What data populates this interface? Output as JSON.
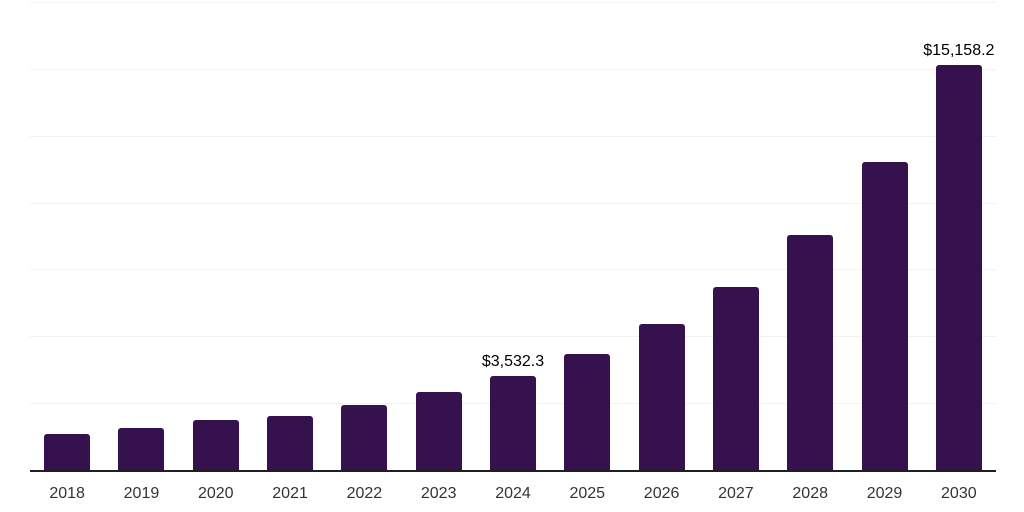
{
  "chart_data": {
    "type": "bar",
    "title": "",
    "categories": [
      "2018",
      "2019",
      "2020",
      "2021",
      "2022",
      "2023",
      "2024",
      "2025",
      "2026",
      "2027",
      "2028",
      "2029",
      "2030"
    ],
    "values": [
      1350,
      1570,
      1870,
      2020,
      2430,
      2930,
      3532.3,
      4350,
      5470,
      6840,
      8790,
      11500,
      15158.2
    ],
    "data_labels": [
      "",
      "",
      "",
      "",
      "",
      "",
      "$3,532.3",
      "",
      "",
      "",
      "",
      "",
      "$15,158.2"
    ],
    "ylim": [
      0,
      17500
    ],
    "gridline_step": 2500,
    "grid": "on",
    "legend": "none",
    "y_axis_labels": "none",
    "colors": {
      "bar": "#35124e",
      "axis_line": "#1f1f1f",
      "gridline": "#f2f2f2",
      "x_tick_label": "#333333",
      "data_label": "#000000",
      "background": "#ffffff"
    }
  }
}
